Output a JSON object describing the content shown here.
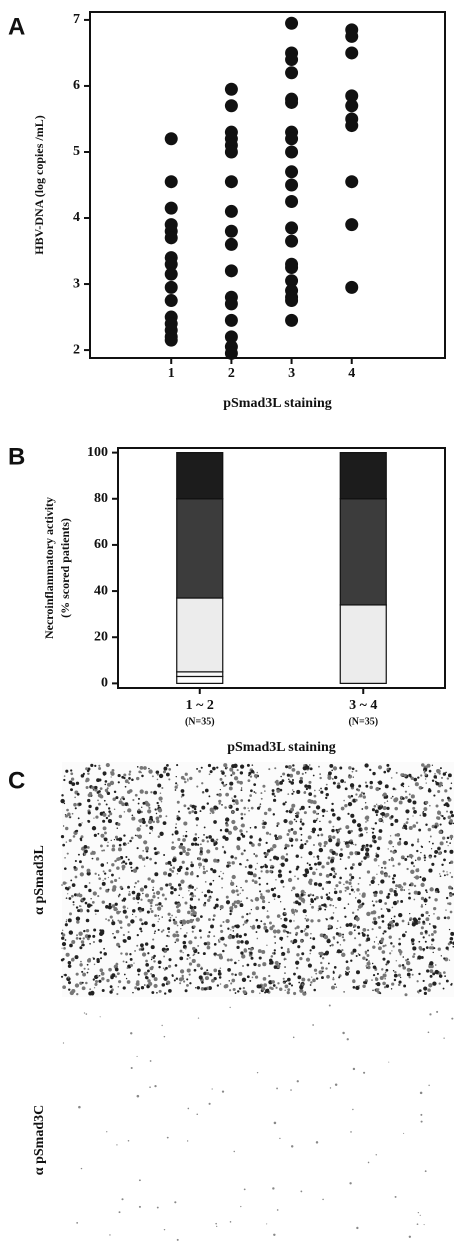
{
  "chart_data": [
    {
      "type": "scatter",
      "label": "A",
      "xlabel": "pSmad3L staining",
      "ylabel": "HBV-DNA (log copies /mL)",
      "x": [
        1,
        1,
        1,
        1,
        1,
        1,
        1,
        1,
        1,
        1,
        1,
        1,
        1,
        1,
        1,
        1,
        2,
        2,
        2,
        2,
        2,
        2,
        2,
        2,
        2,
        2,
        2,
        2,
        2,
        2,
        2,
        2,
        2,
        3,
        3,
        3,
        3,
        3,
        3,
        3,
        3,
        3,
        3,
        3,
        3,
        3,
        3,
        3,
        3,
        3,
        3,
        3,
        3,
        3,
        4,
        4,
        4,
        4,
        4,
        4,
        4,
        4,
        4,
        4
      ],
      "values": [
        5.2,
        4.55,
        4.15,
        3.9,
        3.8,
        3.7,
        3.4,
        3.3,
        3.15,
        2.95,
        2.75,
        2.5,
        2.4,
        2.3,
        2.2,
        2.15,
        5.95,
        5.7,
        5.3,
        5.2,
        5.1,
        5.0,
        4.55,
        4.1,
        3.8,
        3.6,
        3.2,
        2.8,
        2.7,
        2.45,
        2.2,
        2.05,
        1.95,
        6.95,
        6.5,
        6.4,
        6.2,
        5.8,
        5.75,
        5.3,
        5.2,
        5.0,
        4.7,
        4.5,
        4.25,
        3.85,
        3.65,
        3.3,
        3.25,
        3.05,
        2.9,
        2.8,
        2.75,
        2.45,
        6.85,
        6.75,
        6.5,
        5.85,
        5.7,
        5.5,
        5.4,
        4.55,
        3.9,
        2.95
      ],
      "color": "#111111",
      "xlim": [
        -0.35,
        5.55
      ],
      "ylim": [
        1.88,
        7.12
      ],
      "xticks": [
        1,
        2,
        3,
        4
      ],
      "yticks": [
        2,
        3,
        4,
        5,
        6,
        7
      ]
    },
    {
      "type": "stacked-bar",
      "label": "B",
      "xlabel": "pSmad3L staining",
      "ylabel": [
        "Necroinflammatory activity",
        "(% scored patients)"
      ],
      "categories": [
        "1 ~ 2",
        "3 ~ 4"
      ],
      "category_notes": [
        "(N=35)",
        "(N=35)"
      ],
      "series": [
        {
          "color": "#ffffff",
          "values": [
            3,
            0
          ]
        },
        {
          "color": "#fafafa",
          "values": [
            2,
            0
          ]
        },
        {
          "color": "#ececec",
          "values": [
            32,
            34
          ]
        },
        {
          "color": "#3c3c3c",
          "values": [
            43,
            46
          ]
        },
        {
          "color": "#1c1c1c",
          "values": [
            20,
            20
          ]
        }
      ],
      "ylim": [
        -2,
        102
      ],
      "yticks": [
        0,
        20,
        40,
        60,
        80,
        100
      ]
    }
  ],
  "panel_c": {
    "label": "C",
    "rows": [
      "α pSmad3L",
      "α pSmad3C"
    ]
  }
}
